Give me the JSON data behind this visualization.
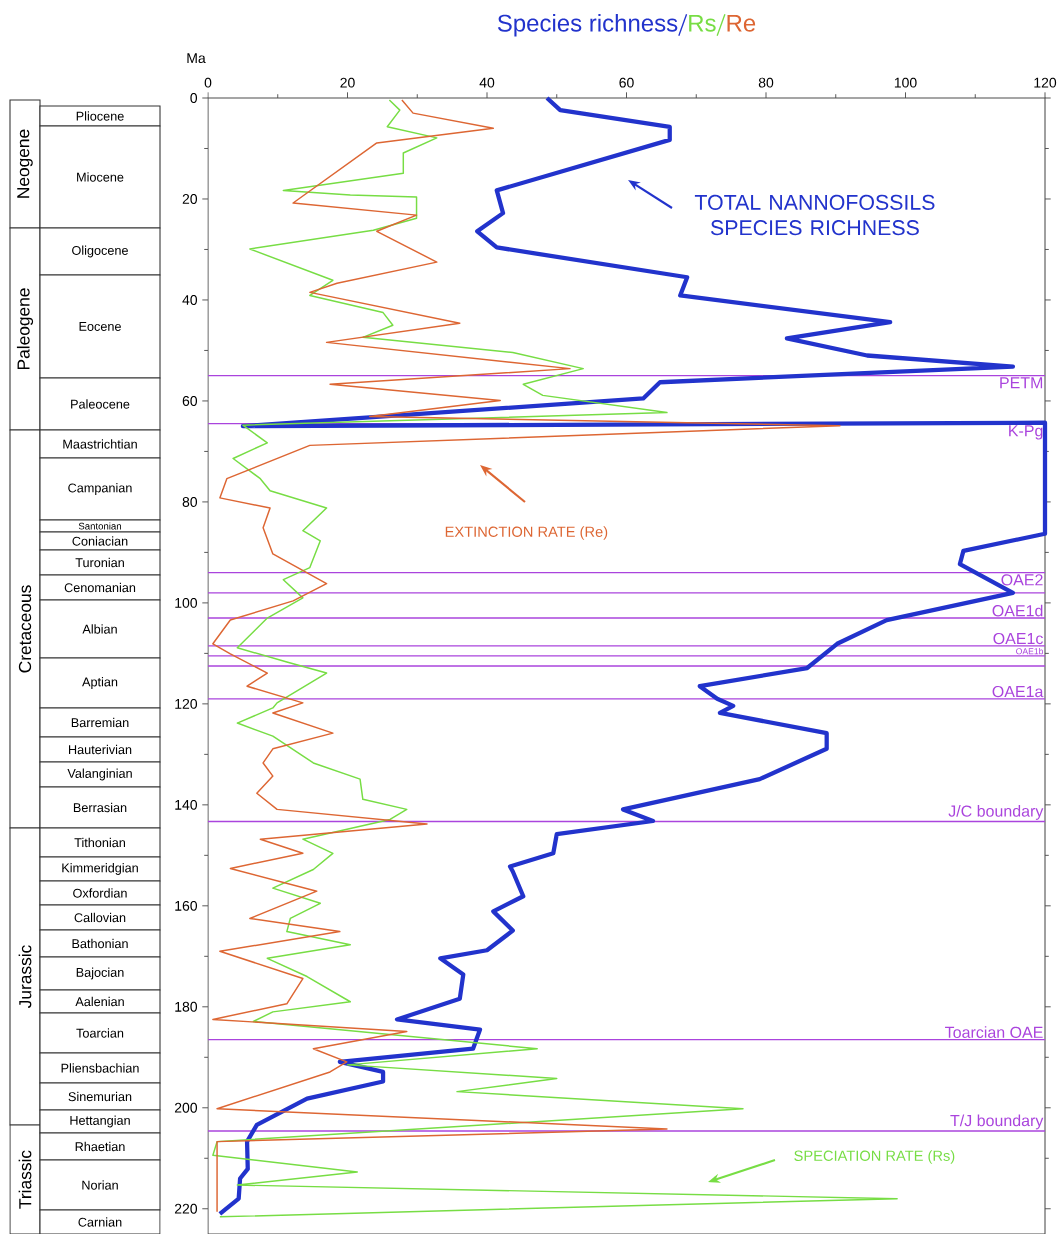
{
  "chart_data": [
    {
      "type": "other",
      "annotations": [
        "Neogene",
        "Paleogene",
        "Cretaceous",
        "Jurassic",
        "Triassic",
        "Pliocene",
        "Miocene",
        "Oligocene",
        "Eocene",
        "Paleocene",
        "Maastrichtian",
        "Campanian",
        "Santonian",
        "Coniacian",
        "Turonian",
        "Cenomanian",
        "Albian",
        "Aptian",
        "Barremian",
        "Hauterivian",
        "Valanginian",
        "Berrasian",
        "Tithonian",
        "Kimmeridgian",
        "Oxfordian",
        "Callovian",
        "Bathonian",
        "Bajocian",
        "Aalenian",
        "Toarcian",
        "Pliensbachian",
        "Sinemurian",
        "Hettangian",
        "Rhaetian",
        "Norian",
        "Carnian"
      ]
    },
    {
      "type": "line",
      "ylabel": "Ma",
      "legend": "top",
      "marker": "none",
      "xlim": [
        0,
        120
      ],
      "xticks": [
        0,
        20,
        40,
        60,
        80,
        100,
        120
      ],
      "ylim": [
        225,
        0
      ],
      "yticks": [
        0,
        20,
        40,
        60,
        80,
        100,
        120,
        140,
        160,
        180,
        200,
        220
      ],
      "series": [
        {
          "name": "Species richness",
          "color": "#2233cc",
          "x": [
            48.6,
            50.5,
            66.2,
            66.2,
            41.4,
            42.3,
            38.6,
            41.4,
            68.7,
            67.7,
            97.8,
            83,
            94.5,
            115.4,
            64.8,
            62.4,
            5,
            120,
            120,
            108.3,
            107.8,
            115.4,
            97.3,
            90.2,
            85.9,
            70.5,
            73,
            75.3,
            73.4,
            88.7,
            88.7,
            79.1,
            59.5,
            63.8,
            50,
            49.5,
            43.3,
            43.7,
            45.2,
            40.9,
            43.7,
            40,
            33.3,
            36.6,
            36.1,
            27.1,
            39,
            38,
            18.9,
            25.1,
            25.1,
            14.2,
            7,
            5.6,
            5.7,
            4.6,
            4.4,
            1.7
          ],
          "values": [
            0,
            2.4,
            5.7,
            8.3,
            18.3,
            22.8,
            26.4,
            29.6,
            35.5,
            39.1,
            44.4,
            47.6,
            51,
            53.2,
            56.3,
            59.5,
            65,
            64.3,
            86.3,
            89.7,
            92.3,
            98,
            103.4,
            108.1,
            112.9,
            116.5,
            119,
            120.4,
            121.8,
            125.8,
            128.9,
            134.9,
            140.9,
            143.2,
            145.8,
            149.6,
            152.2,
            153.2,
            158.1,
            161.1,
            164.9,
            168.8,
            170.4,
            173.6,
            178.4,
            182.5,
            184.5,
            188.3,
            190.9,
            192.9,
            194.8,
            198.2,
            203.4,
            206.7,
            212.1,
            214,
            218,
            221
          ]
        },
        {
          "name": "Rs",
          "color": "#77dd44",
          "x": [
            26,
            27.5,
            25.7,
            32.8,
            28,
            28,
            10.8,
            20.4,
            29.9,
            29.9,
            23.7,
            6,
            17.9,
            14.6,
            25.1,
            26.5,
            22.2,
            43.7,
            53.8,
            45.2,
            48,
            65.8,
            5,
            8.5,
            3.6,
            7.5,
            8.9,
            17,
            13.6,
            16.1,
            14.6,
            10.8,
            13.6,
            8.5,
            4.2,
            11.3,
            17,
            9.9,
            9.3,
            4.2,
            9.3,
            15.1,
            21.8,
            22.2,
            28.5,
            26.1,
            13.6,
            17.9,
            15.1,
            9.3,
            16.1,
            11.8,
            11.3,
            20.4,
            8.5,
            14.2,
            20.4,
            9.3,
            6.5,
            47.2,
            20,
            50,
            35.7,
            76.7,
            1.3,
            0.7,
            21.4,
            4.2,
            98.8,
            1.7
          ],
          "values": [
            0.4,
            2.4,
            5.7,
            7.9,
            10.9,
            14.9,
            18.3,
            19.2,
            19.6,
            23.8,
            26.2,
            29.9,
            36.1,
            39.1,
            42.5,
            45,
            47.4,
            50.4,
            53.6,
            56.7,
            58.9,
            62.3,
            64.8,
            68.3,
            71.4,
            75.4,
            77.8,
            81.2,
            85.7,
            87.7,
            93,
            95.4,
            99,
            103,
            108.9,
            111.7,
            113.9,
            119.8,
            120.8,
            123.8,
            126.4,
            131.7,
            134.9,
            138.9,
            140.9,
            142.9,
            146.8,
            149.6,
            152.8,
            156.5,
            159.5,
            162.5,
            165.1,
            167.7,
            170.4,
            174,
            179,
            181,
            182.9,
            188.3,
            191.5,
            194.2,
            196.8,
            200.2,
            206.7,
            209.4,
            212.7,
            215.3,
            218,
            221.6
          ]
        },
        {
          "name": "Re",
          "color": "#dd6633",
          "x": [
            27.8,
            29.4,
            40.9,
            24.2,
            12.2,
            29.9,
            24.2,
            32.8,
            18.5,
            14.6,
            36.1,
            17,
            51.9,
            17.5,
            41.9,
            23.2,
            90.6,
            14.6,
            2.7,
            1.7,
            8.9,
            7.9,
            9.3,
            17,
            12.2,
            3.2,
            0.7,
            3.2,
            8.5,
            5.6,
            13.6,
            9.3,
            17.9,
            9.3,
            7.9,
            9.3,
            7,
            9.9,
            31.4,
            7.5,
            13.6,
            3.2,
            15.6,
            6,
            18.9,
            1.7,
            13.6,
            11.3,
            0.7,
            28.5,
            15.1,
            19.9,
            17.5,
            1.3,
            65.8,
            1.3,
            1.3
          ],
          "values": [
            0.4,
            3,
            6,
            8.9,
            20.8,
            23.2,
            26.4,
            32.5,
            36.7,
            38.5,
            44.6,
            48.4,
            53.6,
            56.7,
            59.9,
            63.1,
            64.9,
            68.8,
            75.4,
            79.2,
            81.2,
            85.1,
            90.3,
            96.2,
            99.6,
            103.4,
            108.1,
            110.1,
            113.9,
            116.5,
            119.8,
            121.8,
            125.8,
            128.9,
            131.7,
            134.3,
            137.7,
            140.9,
            143.8,
            146.8,
            149.6,
            152.6,
            157.1,
            162.5,
            165.1,
            169,
            174.4,
            179.4,
            182.5,
            184.9,
            188.3,
            190.9,
            192.9,
            200.2,
            204.2,
            206.7,
            220.6
          ]
        }
      ],
      "ref_lines": [
        {
          "axis": "y",
          "value": 55,
          "label": "PETM",
          "color": "#aa44dd"
        },
        {
          "axis": "y",
          "value": 64.5,
          "label": "K-Pg",
          "color": "#aa44dd"
        },
        {
          "axis": "y",
          "value": 94,
          "label": "OAE2",
          "color": "#aa44dd"
        },
        {
          "axis": "y",
          "value": 98,
          "label": null,
          "color": "#aa44dd"
        },
        {
          "axis": "y",
          "value": 103,
          "label": "OAE1d",
          "color": "#aa44dd"
        },
        {
          "axis": "y",
          "value": 108.5,
          "label": "OAE1c",
          "color": "#aa44dd"
        },
        {
          "axis": "y",
          "value": 110.5,
          "label": "OAE1b",
          "color": "#aa44dd"
        },
        {
          "axis": "y",
          "value": 112.5,
          "label": null,
          "color": "#aa44dd"
        },
        {
          "axis": "y",
          "value": 119,
          "label": "OAE1a",
          "color": "#aa44dd"
        },
        {
          "axis": "y",
          "value": 143.3,
          "label": "J/C boundary",
          "color": "#aa44dd"
        },
        {
          "axis": "y",
          "value": 186.5,
          "label": "Toarcian OAE",
          "color": "#aa44dd"
        },
        {
          "axis": "y",
          "value": 204.6,
          "label": "T/J boundary",
          "color": "#aa44dd"
        }
      ],
      "annotations": [
        "TOTAL NANNOFOSSILS SPECIES RICHNESS",
        "EXTINCTION RATE (Re)",
        "SPECIATION RATE (Rs)"
      ]
    }
  ]
}
